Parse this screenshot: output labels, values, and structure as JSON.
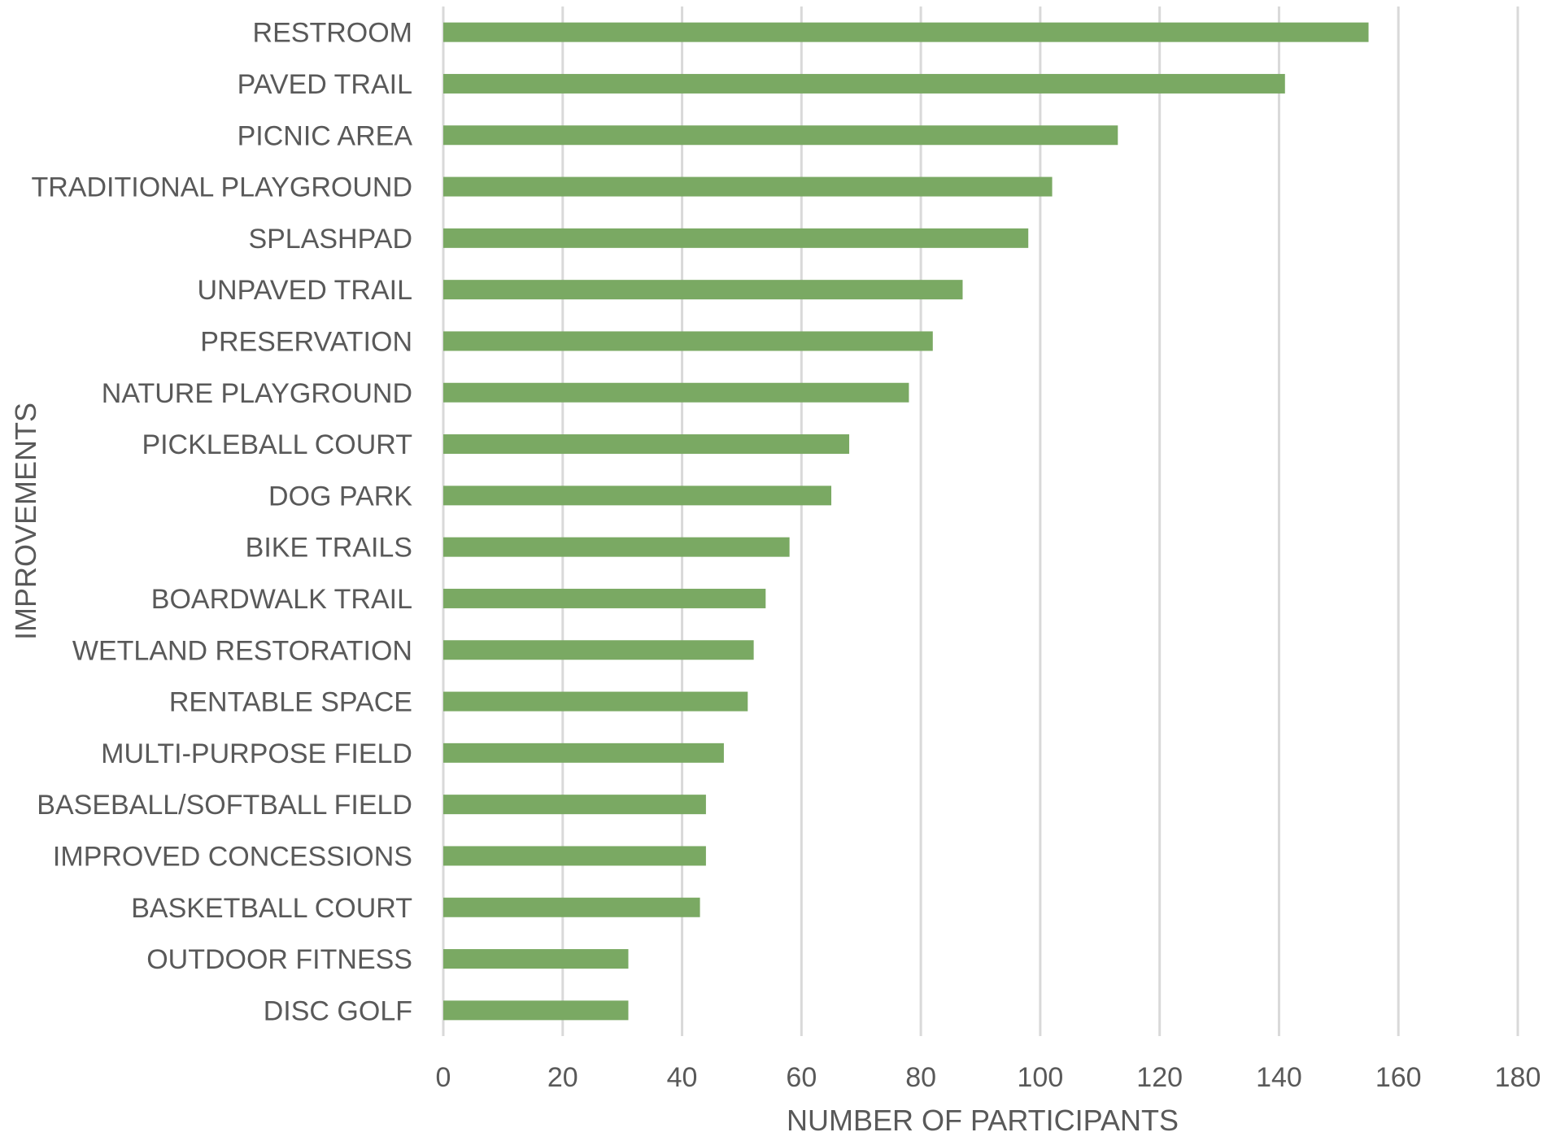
{
  "chart_data": {
    "type": "bar",
    "orientation": "horizontal",
    "categories": [
      "RESTROOM",
      "PAVED TRAIL",
      "PICNIC AREA",
      "TRADITIONAL PLAYGROUND",
      "SPLASHPAD",
      "UNPAVED TRAIL",
      "PRESERVATION",
      "NATURE PLAYGROUND",
      "PICKLEBALL COURT",
      "DOG PARK",
      "BIKE TRAILS",
      "BOARDWALK TRAIL",
      "WETLAND RESTORATION",
      "RENTABLE SPACE",
      "MULTI-PURPOSE FIELD",
      "BASEBALL/SOFTBALL FIELD",
      "IMPROVED CONCESSIONS",
      "BASKETBALL COURT",
      "OUTDOOR FITNESS",
      "DISC GOLF"
    ],
    "values": [
      155,
      141,
      113,
      102,
      98,
      87,
      82,
      78,
      68,
      65,
      58,
      54,
      52,
      51,
      47,
      44,
      44,
      43,
      31,
      31
    ],
    "xlabel": "NUMBER OF PARTICIPANTS",
    "ylabel": "IMPROVEMENTS",
    "xlim": [
      0,
      180
    ],
    "xticks": [
      "0",
      "20",
      "40",
      "60",
      "80",
      "100",
      "120",
      "140",
      "160",
      "180"
    ],
    "grid": "vertical",
    "bar_color": "#7aa963",
    "text_color": "#595959",
    "grid_color": "#d9d9d9"
  }
}
